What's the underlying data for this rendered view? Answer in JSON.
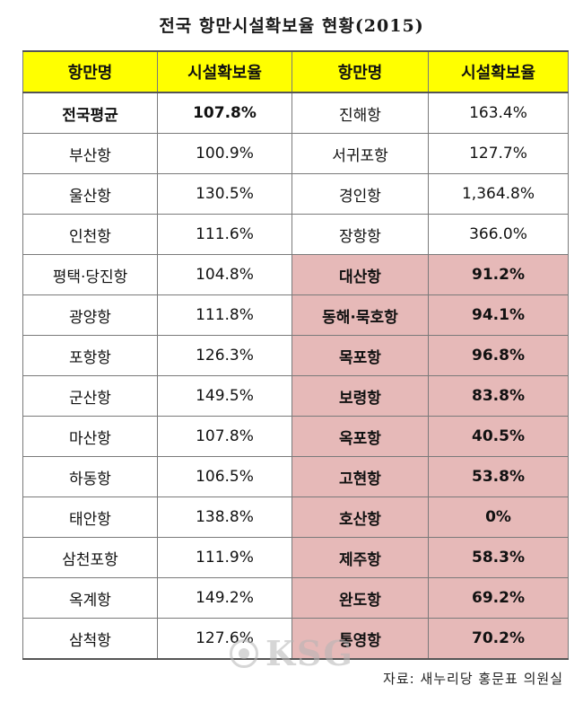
{
  "title": "전국  항만시설확보율  현황(2015)",
  "header": {
    "col1": "항만명",
    "col2": "시설확보율",
    "col3": "항만명",
    "col4": "시설확보율",
    "header_bg": "#ffff00"
  },
  "highlight_color": "#e6b9b8",
  "rows": [
    {
      "left_port": "전국평균",
      "left_ratio": "107.8%",
      "right_port": "진해항",
      "right_ratio": "163.4%",
      "right_highlighted": false
    },
    {
      "left_port": "부산항",
      "left_ratio": "100.9%",
      "right_port": "서귀포항",
      "right_ratio": "127.7%",
      "right_highlighted": false
    },
    {
      "left_port": "울산항",
      "left_ratio": "130.5%",
      "right_port": "경인항",
      "right_ratio": "1,364.8%",
      "right_highlighted": false
    },
    {
      "left_port": "인천항",
      "left_ratio": "111.6%",
      "right_port": "장항항",
      "right_ratio": "366.0%",
      "right_highlighted": false
    },
    {
      "left_port": "평택·당진항",
      "left_ratio": "104.8%",
      "right_port": "대산항",
      "right_ratio": "91.2%",
      "right_highlighted": true
    },
    {
      "left_port": "광양항",
      "left_ratio": "111.8%",
      "right_port": "동해·묵호항",
      "right_ratio": "94.1%",
      "right_highlighted": true
    },
    {
      "left_port": "포항항",
      "left_ratio": "126.3%",
      "right_port": "목포항",
      "right_ratio": "96.8%",
      "right_highlighted": true
    },
    {
      "left_port": "군산항",
      "left_ratio": "149.5%",
      "right_port": "보령항",
      "right_ratio": "83.8%",
      "right_highlighted": true
    },
    {
      "left_port": "마산항",
      "left_ratio": "107.8%",
      "right_port": "옥포항",
      "right_ratio": "40.5%",
      "right_highlighted": true
    },
    {
      "left_port": "하동항",
      "left_ratio": "106.5%",
      "right_port": "고현항",
      "right_ratio": "53.8%",
      "right_highlighted": true
    },
    {
      "left_port": "태안항",
      "left_ratio": "138.8%",
      "right_port": "호산항",
      "right_ratio": "0%",
      "right_highlighted": true
    },
    {
      "left_port": "삼천포항",
      "left_ratio": "111.9%",
      "right_port": "제주항",
      "right_ratio": "58.3%",
      "right_highlighted": true
    },
    {
      "left_port": "옥계항",
      "left_ratio": "149.2%",
      "right_port": "완도항",
      "right_ratio": "69.2%",
      "right_highlighted": true
    },
    {
      "left_port": "삼척항",
      "left_ratio": "127.6%",
      "right_port": "통영항",
      "right_ratio": "70.2%",
      "right_highlighted": true
    }
  ],
  "watermark": "KSG",
  "source": "자료: 새누리당 홍문표 의원실"
}
